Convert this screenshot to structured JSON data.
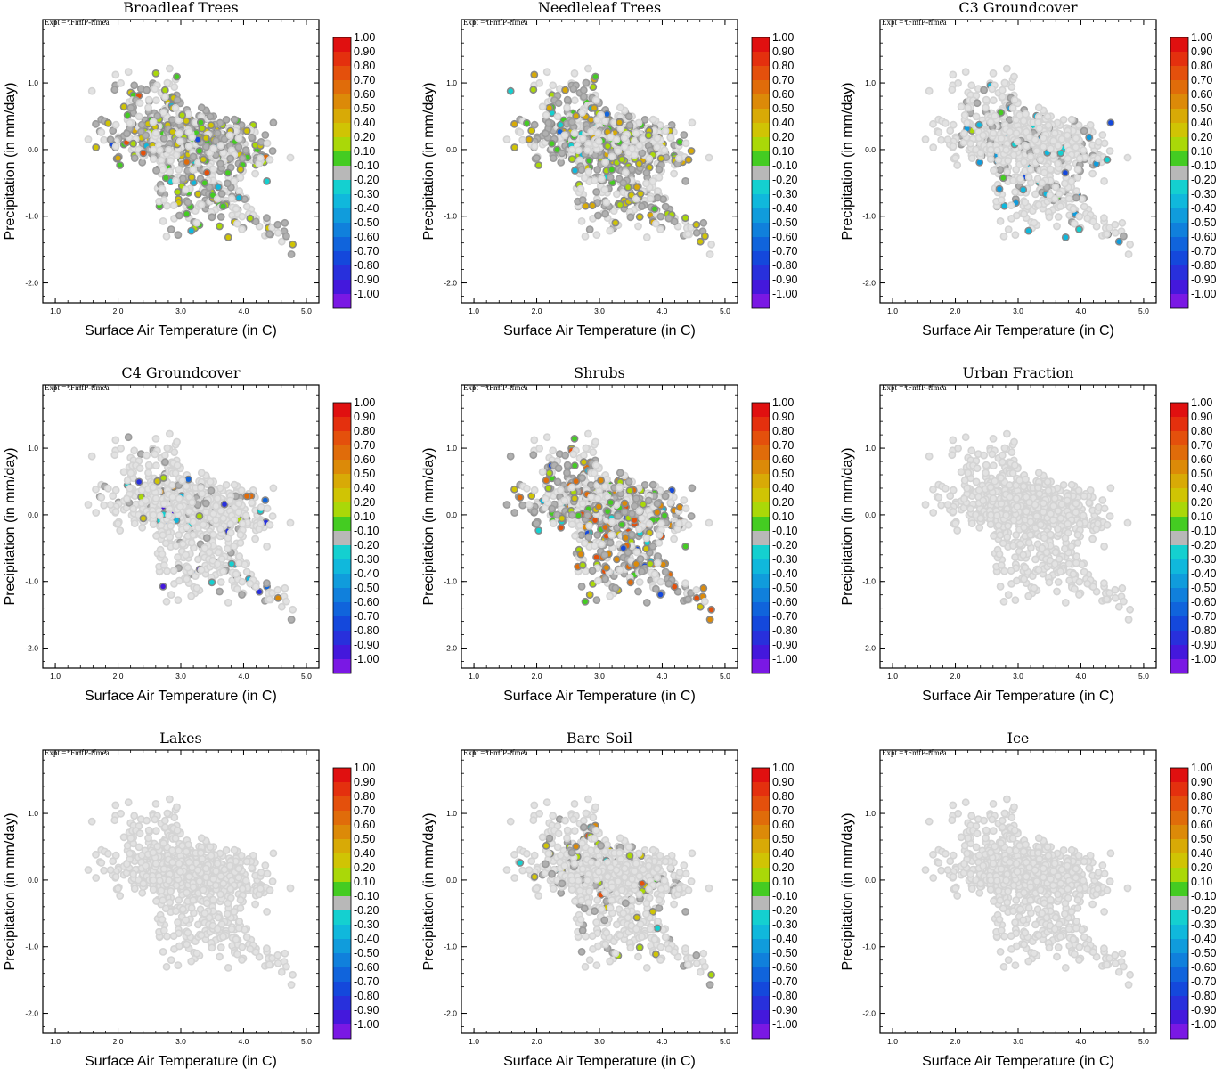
{
  "figure": {
    "experiment_label": "Expt = tFmfP-tfmea",
    "colorbar": {
      "labels": [
        "1.00",
        "0.90",
        "0.80",
        "0.70",
        "0.60",
        "0.50",
        "0.40",
        "0.20",
        "0.10",
        "-0.10",
        "-0.20",
        "-0.30",
        "-0.40",
        "-0.50",
        "-0.60",
        "-0.70",
        "-0.80",
        "-0.90",
        "-1.00"
      ],
      "colors": [
        "#e01010",
        "#e4300e",
        "#e4500c",
        "#e06c0a",
        "#dc8a08",
        "#d8aa06",
        "#d0c404",
        "#aad808",
        "#44cc22",
        "#b8b8b8",
        "#14d0d0",
        "#10b8dc",
        "#109cdc",
        "#1080dc",
        "#1064dc",
        "#1448dc",
        "#2830dc",
        "#4418dc",
        "#7a18e4"
      ]
    },
    "background_color": "#e2e2e2"
  },
  "chart_data": [
    {
      "type": "scatter",
      "title": "Broadleaf Trees",
      "xlabel": "Surface Air Temperature (in C)",
      "ylabel": "Precipitation (in mm/day)",
      "xlim": [
        0.8,
        5.2
      ],
      "ylim": [
        -2.3,
        1.95
      ],
      "xticks": [
        "1.0",
        "2.0",
        "3.0",
        "4.0",
        "5.0"
      ],
      "yticks": [
        "1.0",
        "0.0",
        "-1.0",
        "-2.0"
      ],
      "highlights": {
        "primary_fraction": 0.5,
        "secondary_fraction": 0.2,
        "primary_colors": [
          "#44cc22",
          "#aad808",
          "#d0c404"
        ],
        "secondary_colors": [
          "#e4500c",
          "#e06c0a",
          "#d8aa06",
          "#14d0d0",
          "#10b8dc",
          "#1448dc"
        ]
      }
    },
    {
      "type": "scatter",
      "title": "Needleleaf Trees",
      "xlabel": "Surface Air Temperature (in C)",
      "ylabel": "Precipitation (in mm/day)",
      "xlim": [
        0.8,
        5.2
      ],
      "ylim": [
        -2.3,
        1.95
      ],
      "xticks": [
        "1.0",
        "2.0",
        "3.0",
        "4.0",
        "5.0"
      ],
      "yticks": [
        "1.0",
        "0.0",
        "-1.0",
        "-2.0"
      ],
      "highlights": {
        "primary_fraction": 0.5,
        "secondary_fraction": 0.1,
        "primary_colors": [
          "#d8aa06",
          "#d0c404",
          "#aad808",
          "#44cc22"
        ],
        "secondary_colors": [
          "#14d0d0",
          "#10b8dc",
          "#1064dc"
        ]
      }
    },
    {
      "type": "scatter",
      "title": "C3 Groundcover",
      "xlabel": "Surface Air Temperature (in C)",
      "ylabel": "Precipitation (in mm/day)",
      "xlim": [
        0.8,
        5.2
      ],
      "ylim": [
        -2.3,
        1.95
      ],
      "xticks": [
        "1.0",
        "2.0",
        "3.0",
        "4.0",
        "5.0"
      ],
      "yticks": [
        "1.0",
        "0.0",
        "-1.0",
        "-2.0"
      ],
      "highlights": {
        "primary_fraction": 0.15,
        "secondary_fraction": 0.05,
        "primary_colors": [
          "#14d0d0",
          "#10b8dc",
          "#109cdc"
        ],
        "secondary_colors": [
          "#44cc22",
          "#aad808",
          "#1448dc"
        ]
      }
    },
    {
      "type": "scatter",
      "title": "C4 Groundcover",
      "xlabel": "Surface Air Temperature (in C)",
      "ylabel": "Precipitation (in mm/day)",
      "xlim": [
        0.8,
        5.2
      ],
      "ylim": [
        -2.3,
        1.95
      ],
      "xticks": [
        "1.0",
        "2.0",
        "3.0",
        "4.0",
        "5.0"
      ],
      "yticks": [
        "1.0",
        "0.0",
        "-1.0",
        "-2.0"
      ],
      "highlights": {
        "primary_fraction": 0.12,
        "secondary_fraction": 0.06,
        "primary_colors": [
          "#14d0d0",
          "#10b8dc",
          "#1064dc",
          "#2830dc",
          "#4418dc"
        ],
        "secondary_colors": [
          "#dc8a08",
          "#d0c404",
          "#aad808",
          "#e06c0a"
        ]
      }
    },
    {
      "type": "scatter",
      "title": "Shrubs",
      "xlabel": "Surface Air Temperature (in C)",
      "ylabel": "Precipitation (in mm/day)",
      "xlim": [
        0.8,
        5.2
      ],
      "ylim": [
        -2.3,
        1.95
      ],
      "xticks": [
        "1.0",
        "2.0",
        "3.0",
        "4.0",
        "5.0"
      ],
      "yticks": [
        "1.0",
        "0.0",
        "-1.0",
        "-2.0"
      ],
      "highlights": {
        "primary_fraction": 0.55,
        "secondary_fraction": 0.15,
        "primary_colors": [
          "#e4500c",
          "#e06c0a",
          "#dc8a08",
          "#d0c404",
          "#aad808",
          "#44cc22"
        ],
        "secondary_colors": [
          "#14d0d0",
          "#10b8dc",
          "#1448dc"
        ]
      }
    },
    {
      "type": "scatter",
      "title": "Urban Fraction",
      "xlabel": "Surface Air Temperature (in C)",
      "ylabel": "Precipitation (in mm/day)",
      "xlim": [
        0.8,
        5.2
      ],
      "ylim": [
        -2.3,
        1.95
      ],
      "xticks": [
        "1.0",
        "2.0",
        "3.0",
        "4.0",
        "5.0"
      ],
      "yticks": [
        "1.0",
        "0.0",
        "-1.0",
        "-2.0"
      ],
      "highlights": {
        "primary_fraction": 0,
        "secondary_fraction": 0,
        "primary_colors": [],
        "secondary_colors": []
      }
    },
    {
      "type": "scatter",
      "title": "Lakes",
      "xlabel": "Surface Air Temperature (in C)",
      "ylabel": "Precipitation (in mm/day)",
      "xlim": [
        0.8,
        5.2
      ],
      "ylim": [
        -2.3,
        1.95
      ],
      "xticks": [
        "1.0",
        "2.0",
        "3.0",
        "4.0",
        "5.0"
      ],
      "yticks": [
        "1.0",
        "0.0",
        "-1.0",
        "-2.0"
      ],
      "highlights": {
        "primary_fraction": 0,
        "secondary_fraction": 0,
        "primary_colors": [],
        "secondary_colors": []
      }
    },
    {
      "type": "scatter",
      "title": "Bare Soil",
      "xlabel": "Surface Air Temperature (in C)",
      "ylabel": "Precipitation (in mm/day)",
      "xlim": [
        0.8,
        5.2
      ],
      "ylim": [
        -2.3,
        1.95
      ],
      "xticks": [
        "1.0",
        "2.0",
        "3.0",
        "4.0",
        "5.0"
      ],
      "yticks": [
        "1.0",
        "0.0",
        "-1.0",
        "-2.0"
      ],
      "highlights": {
        "primary_fraction": 0.12,
        "secondary_fraction": 0.05,
        "primary_colors": [
          "#44cc22",
          "#aad808",
          "#d0c404"
        ],
        "secondary_colors": [
          "#e4500c",
          "#dc8a08",
          "#14d0d0"
        ]
      }
    },
    {
      "type": "scatter",
      "title": "Ice",
      "xlabel": "Surface Air Temperature (in C)",
      "ylabel": "Precipitation (in mm/day)",
      "xlim": [
        0.8,
        5.2
      ],
      "ylim": [
        -2.3,
        1.95
      ],
      "xticks": [
        "1.0",
        "2.0",
        "3.0",
        "4.0",
        "5.0"
      ],
      "yticks": [
        "1.0",
        "0.0",
        "-1.0",
        "-2.0"
      ],
      "highlights": {
        "primary_fraction": 0,
        "secondary_fraction": 0,
        "primary_colors": [],
        "secondary_colors": []
      }
    }
  ]
}
